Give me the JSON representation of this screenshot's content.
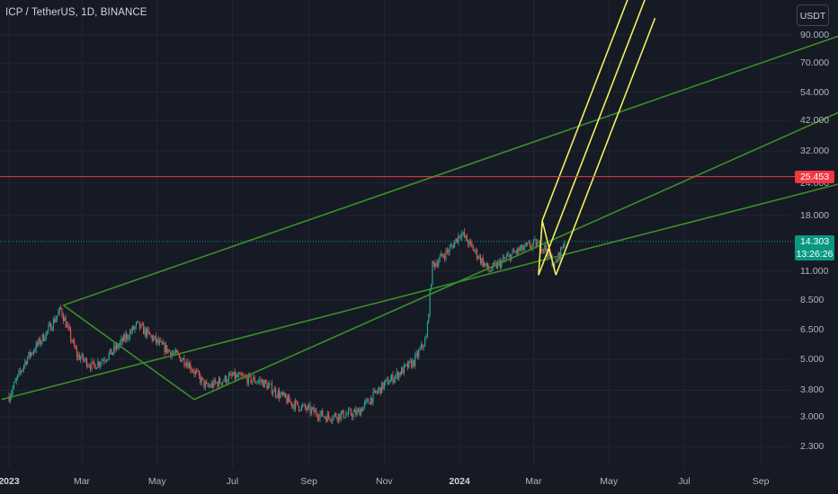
{
  "title": "ICP / TetherUS, 1D, BINANCE",
  "currency_button": "USDT",
  "colors": {
    "background": "#161a25",
    "grid": "#232632",
    "up": "#26a69a",
    "down": "#ef5350",
    "channel": "#3a8f2a",
    "pitchfork": "#f2ee5a",
    "resistance": "#f23645",
    "last_price": "#089981"
  },
  "price_badges": {
    "resistance": "25.453",
    "last_price": "14.303",
    "countdown": "13:26:26"
  },
  "chart_data": {
    "type": "candlestick",
    "symbol": "ICPUSDT",
    "interval": "1D",
    "exchange": "BINANCE",
    "y_scale": "log",
    "y_ticks": [
      "90.000",
      "70.000",
      "54.000",
      "42.000",
      "32.000",
      "24.000",
      "18.000",
      "11.000",
      "8.500",
      "6.500",
      "5.000",
      "3.800",
      "3.000",
      "2.300"
    ],
    "x_ticks": [
      "2023",
      "Mar",
      "May",
      "Jul",
      "Sep",
      "Nov",
      "2024",
      "Mar",
      "May",
      "Jul",
      "Sep"
    ],
    "ylim": [
      2.0,
      125
    ],
    "price_path": [
      {
        "date": "2023-01-01",
        "close": 3.6
      },
      {
        "date": "2023-01-15",
        "close": 5.0
      },
      {
        "date": "2023-02-01",
        "close": 6.4
      },
      {
        "date": "2023-02-12",
        "close": 7.8
      },
      {
        "date": "2023-02-25",
        "close": 5.2
      },
      {
        "date": "2023-03-10",
        "close": 4.7
      },
      {
        "date": "2023-03-25",
        "close": 5.3
      },
      {
        "date": "2023-04-15",
        "close": 6.8
      },
      {
        "date": "2023-05-05",
        "close": 5.6
      },
      {
        "date": "2023-05-25",
        "close": 4.9
      },
      {
        "date": "2023-06-10",
        "close": 3.9
      },
      {
        "date": "2023-07-01",
        "close": 4.3
      },
      {
        "date": "2023-07-25",
        "close": 4.1
      },
      {
        "date": "2023-08-17",
        "close": 3.4
      },
      {
        "date": "2023-09-15",
        "close": 3.0
      },
      {
        "date": "2023-10-10",
        "close": 3.1
      },
      {
        "date": "2023-11-01",
        "close": 4.0
      },
      {
        "date": "2023-11-25",
        "close": 4.9
      },
      {
        "date": "2023-12-05",
        "close": 6.0
      },
      {
        "date": "2023-12-10",
        "close": 11.5
      },
      {
        "date": "2023-12-25",
        "close": 13.5
      },
      {
        "date": "2024-01-02",
        "close": 15.5
      },
      {
        "date": "2024-01-25",
        "close": 11.0
      },
      {
        "date": "2024-02-15",
        "close": 13.0
      },
      {
        "date": "2024-03-02",
        "close": 14.0
      },
      {
        "date": "2024-03-10",
        "close": 13.5
      },
      {
        "date": "2024-03-18",
        "close": 11.5
      },
      {
        "date": "2024-03-26",
        "close": 14.3
      }
    ],
    "last_price": 14.303,
    "horizontal_line": 25.453,
    "ascending_channel": {
      "lower": [
        {
          "date": "2022-12-26",
          "price": 3.5
        },
        {
          "date": "2024-11-20",
          "price": 25.0
        }
      ],
      "middle": [
        {
          "date": "2023-05-31",
          "price": 3.5
        },
        {
          "date": "2024-11-20",
          "price": 49.0
        }
      ],
      "upper": [
        {
          "date": "2023-02-14",
          "price": 8.1
        },
        {
          "date": "2024-11-20",
          "price": 95.0
        }
      ],
      "connector": [
        {
          "date": "2023-02-14",
          "price": 8.1
        },
        {
          "date": "2023-05-31",
          "price": 3.5
        }
      ]
    },
    "pitchfork": {
      "pivots": [
        {
          "date": "2024-03-05",
          "price": 10.6
        },
        {
          "date": "2024-03-08",
          "price": 17.2
        },
        {
          "date": "2024-03-19",
          "price": 10.6
        }
      ]
    }
  }
}
